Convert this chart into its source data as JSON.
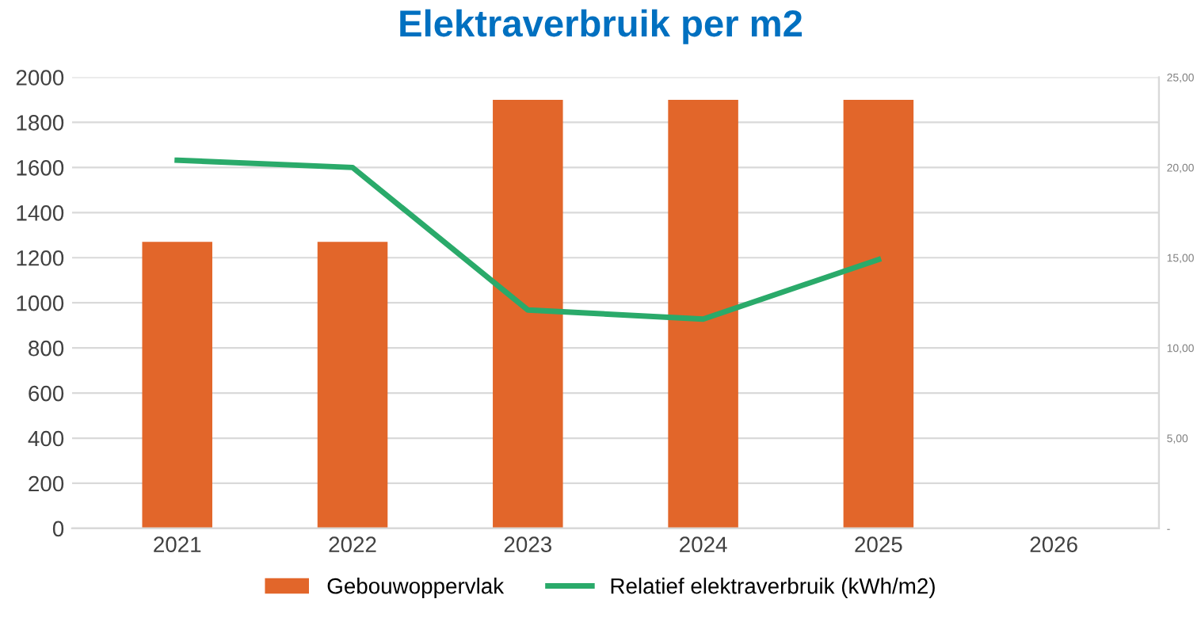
{
  "chart_data": {
    "type": "bar",
    "title": "Elektraverbruik per m2",
    "categories": [
      "2021",
      "2022",
      "2023",
      "2024",
      "2025",
      "2026"
    ],
    "series": [
      {
        "name": "Gebouwoppervlak",
        "color": "#e2662a",
        "values": [
          1270,
          1270,
          1900,
          1900,
          1900,
          null
        ]
      },
      {
        "name": "Relatief elektraverbruik (kWh/m2)",
        "type": "line",
        "axis": "y2",
        "color": "#2aaa6a",
        "values": [
          20.4,
          20.0,
          12.1,
          11.6,
          14.9,
          null
        ]
      }
    ],
    "ylim": [
      0,
      2000
    ],
    "yticks": [
      0,
      200,
      400,
      600,
      800,
      1000,
      1200,
      1400,
      1600,
      1800,
      2000
    ],
    "y2lim": [
      0,
      25
    ],
    "y2ticks": [
      {
        "value": 0,
        "label": "-"
      },
      {
        "value": 5,
        "label": "5,00"
      },
      {
        "value": 10,
        "label": "10,00"
      },
      {
        "value": 15,
        "label": "15,00"
      },
      {
        "value": 20,
        "label": "20,00"
      },
      {
        "value": 25,
        "label": "25,00"
      }
    ],
    "grid": "y",
    "legend": "bottom",
    "marker": "none",
    "line_style": "solid"
  }
}
